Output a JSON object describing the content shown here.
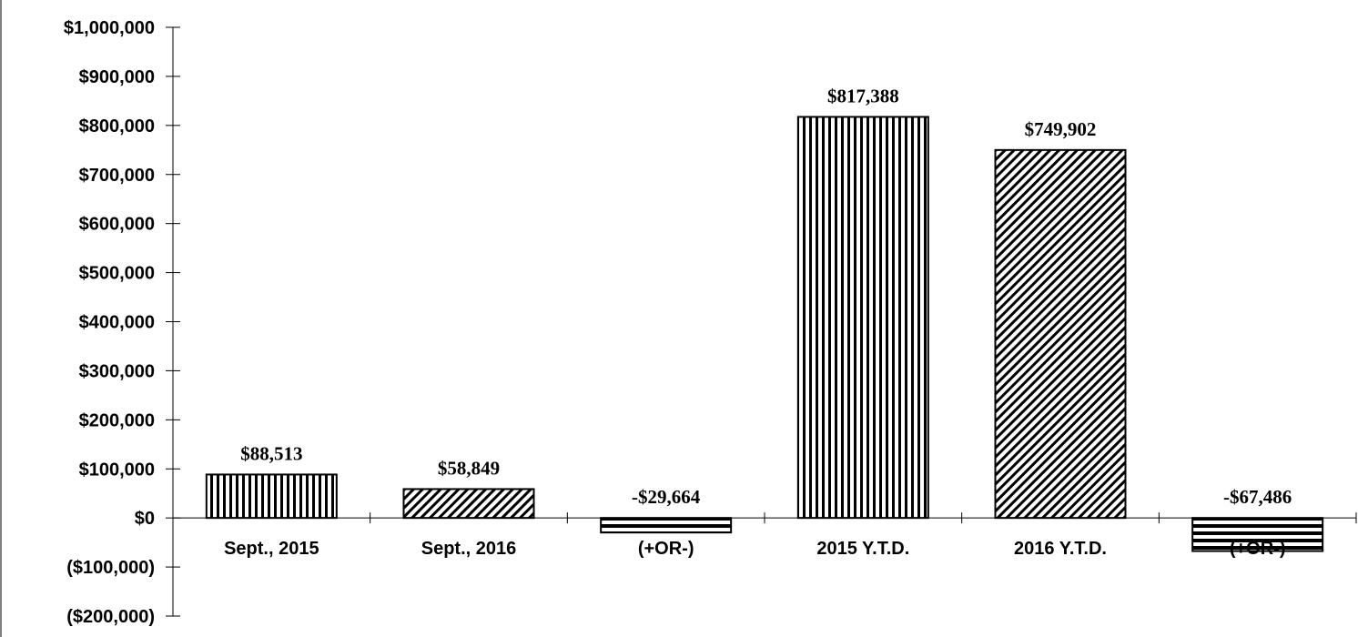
{
  "chart_data": {
    "type": "bar",
    "title": "",
    "xlabel": "",
    "ylabel": "",
    "categories": [
      "Sept., 2015",
      "Sept., 2016",
      "(+OR-)",
      "2015 Y.T.D.",
      "2016 Y.T.D.",
      "(+OR-)"
    ],
    "values": [
      88513,
      58849,
      -29664,
      817388,
      749902,
      -67486
    ],
    "data_labels": [
      "$88,513",
      "$58,849",
      "-$29,664",
      "$817,388",
      "$749,902",
      "-$67,486"
    ],
    "patterns": [
      "vertical-lines",
      "diagonal-lines",
      "horizontal-lines",
      "vertical-lines",
      "diagonal-lines",
      "horizontal-lines"
    ],
    "ylim": [
      -200000,
      1000000
    ],
    "yticks": [
      1000000,
      900000,
      800000,
      700000,
      600000,
      500000,
      400000,
      300000,
      200000,
      100000,
      0,
      -100000,
      -200000
    ],
    "ytick_labels": [
      "$1,000,000",
      "$900,000",
      "$800,000",
      "$700,000",
      "$600,000",
      "$500,000",
      "$400,000",
      "$300,000",
      "$200,000",
      "$100,000",
      "$0",
      "($100,000)",
      "($200,000)"
    ],
    "grid": false,
    "legend": false,
    "bar_color": "#000000",
    "background": "#ffffff"
  }
}
